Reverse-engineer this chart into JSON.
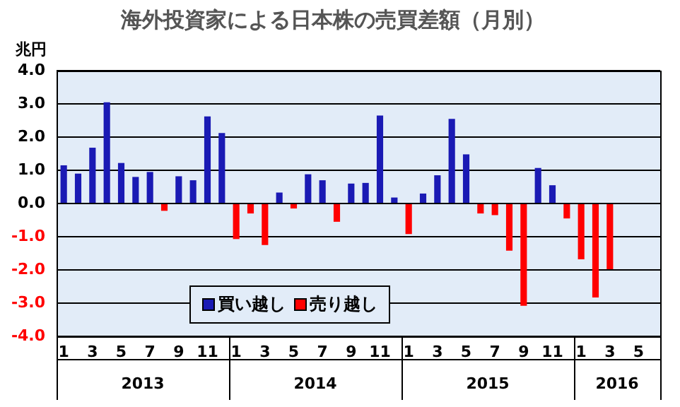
{
  "chart_data": {
    "type": "bar",
    "title": "海外投資家による日本株の売買差額（月別）",
    "ylabel": "兆円",
    "categories": [
      "1",
      null,
      "3",
      null,
      "5",
      null,
      "7",
      null,
      "9",
      null,
      "11",
      null,
      "1",
      null,
      "3",
      null,
      "5",
      null,
      "7",
      null,
      "9",
      null,
      "11",
      null,
      "1",
      null,
      "3",
      null,
      "5",
      null,
      "7",
      null,
      "9",
      null,
      "11",
      null,
      "1",
      null,
      "3",
      null,
      "5",
      null
    ],
    "series": [
      {
        "name": "買い越し",
        "color": "#1a1ab4",
        "values": [
          1.15,
          0.9,
          1.68,
          3.05,
          1.22,
          0.8,
          0.95,
          null,
          0.82,
          0.7,
          2.62,
          2.12,
          null,
          null,
          null,
          0.33,
          null,
          0.88,
          0.7,
          null,
          0.6,
          0.62,
          2.65,
          0.18,
          null,
          0.3,
          0.85,
          2.55,
          1.48,
          null,
          null,
          null,
          null,
          1.07,
          0.55,
          null,
          null,
          null,
          null,
          null,
          null,
          null
        ]
      },
      {
        "name": "売り越し",
        "color": "#ff0000",
        "values": [
          null,
          null,
          null,
          null,
          null,
          null,
          null,
          -0.22,
          null,
          null,
          null,
          null,
          -1.07,
          -0.3,
          -1.25,
          null,
          -0.15,
          null,
          null,
          -0.55,
          null,
          null,
          null,
          null,
          -0.92,
          null,
          null,
          null,
          null,
          -0.3,
          -0.35,
          -1.42,
          -3.08,
          null,
          null,
          -0.45,
          -1.68,
          -2.83,
          -1.98,
          null,
          null,
          null
        ]
      }
    ],
    "ylim": [
      -4,
      4
    ],
    "yticks": [
      {
        "value": -4,
        "label": "-4.0"
      },
      {
        "value": -3,
        "label": "-3.0"
      },
      {
        "value": -2,
        "label": "-2.0"
      },
      {
        "value": -1,
        "label": "-1.0"
      },
      {
        "value": 0,
        "label": "0.0"
      },
      {
        "value": 1,
        "label": "1.0"
      },
      {
        "value": 2,
        "label": "2.0"
      },
      {
        "value": 3,
        "label": "3.0"
      },
      {
        "value": 4,
        "label": "4.0"
      }
    ],
    "grid": "y",
    "legend": "bottom",
    "annotations": [
      "2013",
      "2014",
      "2015",
      "2016"
    ]
  }
}
